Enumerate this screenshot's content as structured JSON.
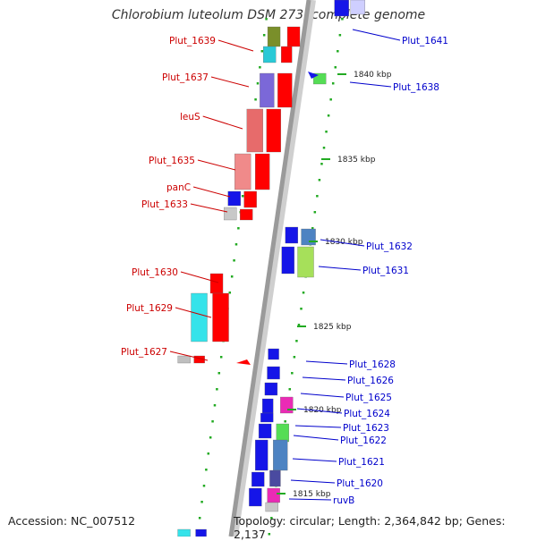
{
  "title": "Chlorobium luteolum DSM 273, complete genome",
  "footer": {
    "accession": "Accession: NC_007512",
    "topology": "Topology: circular; Length: 2,364,842 bp; Genes: 2,137"
  },
  "ticks": [
    "1840 kbp",
    "1835 kbp",
    "1830 kbp",
    "1825 kbp",
    "1820 kbp",
    "1815 kbp"
  ],
  "colors": {
    "backbone": "#9a9a9a",
    "forward_red": "#ff0000",
    "reverse_blue": "#0000ff",
    "label_red": "#cc0000",
    "label_blue": "#0000cc",
    "dots": "#22aa22"
  },
  "left_labels": [
    "Plut_1639",
    "Plut_1637",
    "leuS",
    "Plut_1635",
    "panC",
    "Plut_1633",
    "Plut_1630",
    "Plut_1629",
    "Plut_1627"
  ],
  "right_labels": [
    "Plut_1641",
    "Plut_1638",
    "Plut_1632",
    "Plut_1631",
    "Plut_1628",
    "Plut_1626",
    "Plut_1625",
    "Plut_1624",
    "Plut_1623",
    "Plut_1622",
    "Plut_1621",
    "Plut_1620",
    "ruvB"
  ]
}
